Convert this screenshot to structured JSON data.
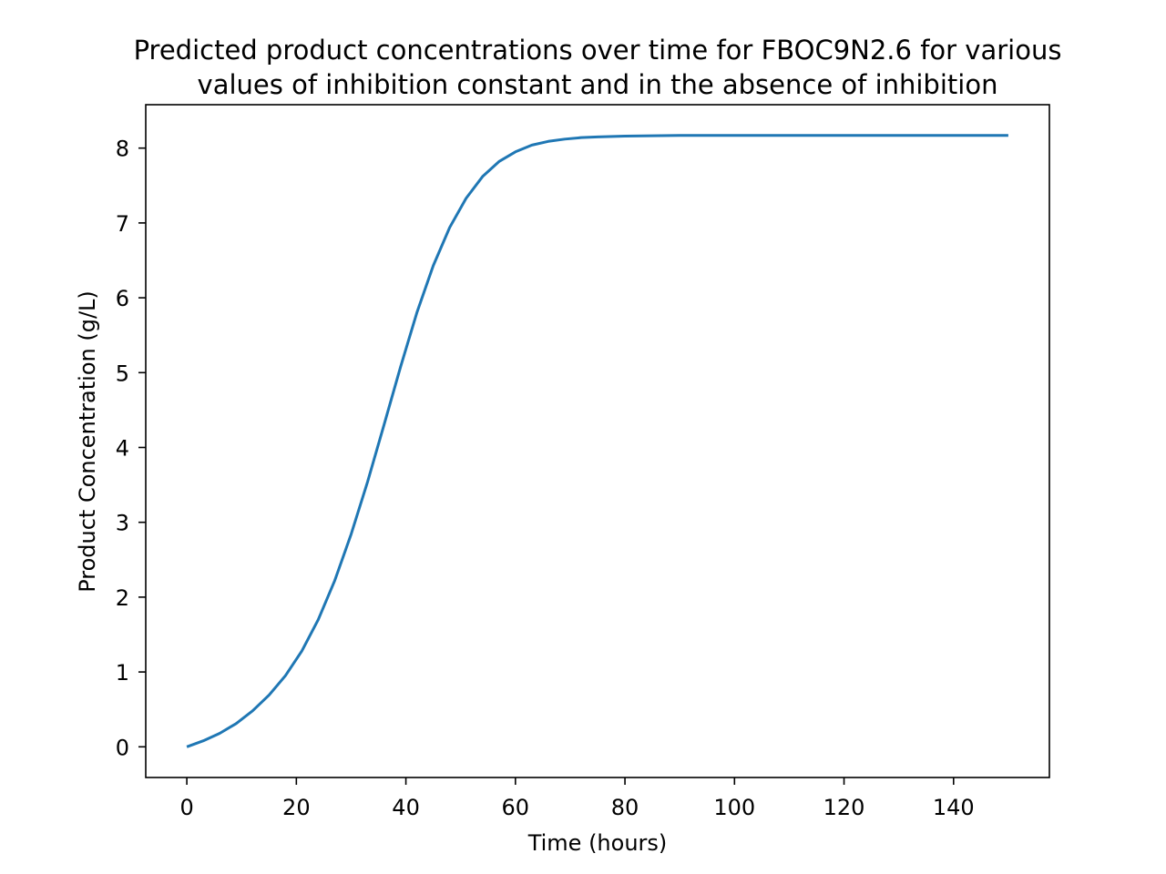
{
  "chart_data": {
    "type": "line",
    "title_lines": [
      "Predicted product concentrations over time for FBOC9N2.6 for various",
      "values of inhibition constant and in the absence of inhibition"
    ],
    "xlabel": "Time (hours)",
    "ylabel": "Product Concentration (g/L)",
    "xlim": [
      -7.5,
      157.5
    ],
    "ylim": [
      -0.41,
      8.58
    ],
    "x_ticks": [
      0,
      20,
      40,
      60,
      80,
      100,
      120,
      140
    ],
    "x_tick_labels": [
      "0",
      "20",
      "40",
      "60",
      "80",
      "100",
      "120",
      "140"
    ],
    "y_ticks": [
      0,
      1,
      2,
      3,
      4,
      5,
      6,
      7,
      8
    ],
    "y_tick_labels": [
      "0",
      "1",
      "2",
      "3",
      "4",
      "5",
      "6",
      "7",
      "8"
    ],
    "grid": false,
    "legend": "none",
    "line_color": "#1f77b4",
    "series": [
      {
        "x": [
          0,
          3,
          6,
          9,
          12,
          15,
          18,
          21,
          24,
          27,
          30,
          33,
          36,
          39,
          42,
          45,
          48,
          51,
          54,
          57,
          60,
          63,
          66,
          69,
          72,
          75,
          80,
          85,
          90,
          100,
          110,
          120,
          130,
          140,
          150
        ],
        "values": [
          0.0,
          0.08,
          0.18,
          0.31,
          0.48,
          0.69,
          0.95,
          1.28,
          1.7,
          2.22,
          2.84,
          3.54,
          4.3,
          5.07,
          5.8,
          6.43,
          6.94,
          7.33,
          7.62,
          7.82,
          7.95,
          8.04,
          8.09,
          8.12,
          8.14,
          8.15,
          8.16,
          8.165,
          8.17,
          8.17,
          8.17,
          8.17,
          8.17,
          8.17,
          8.17
        ]
      }
    ]
  }
}
